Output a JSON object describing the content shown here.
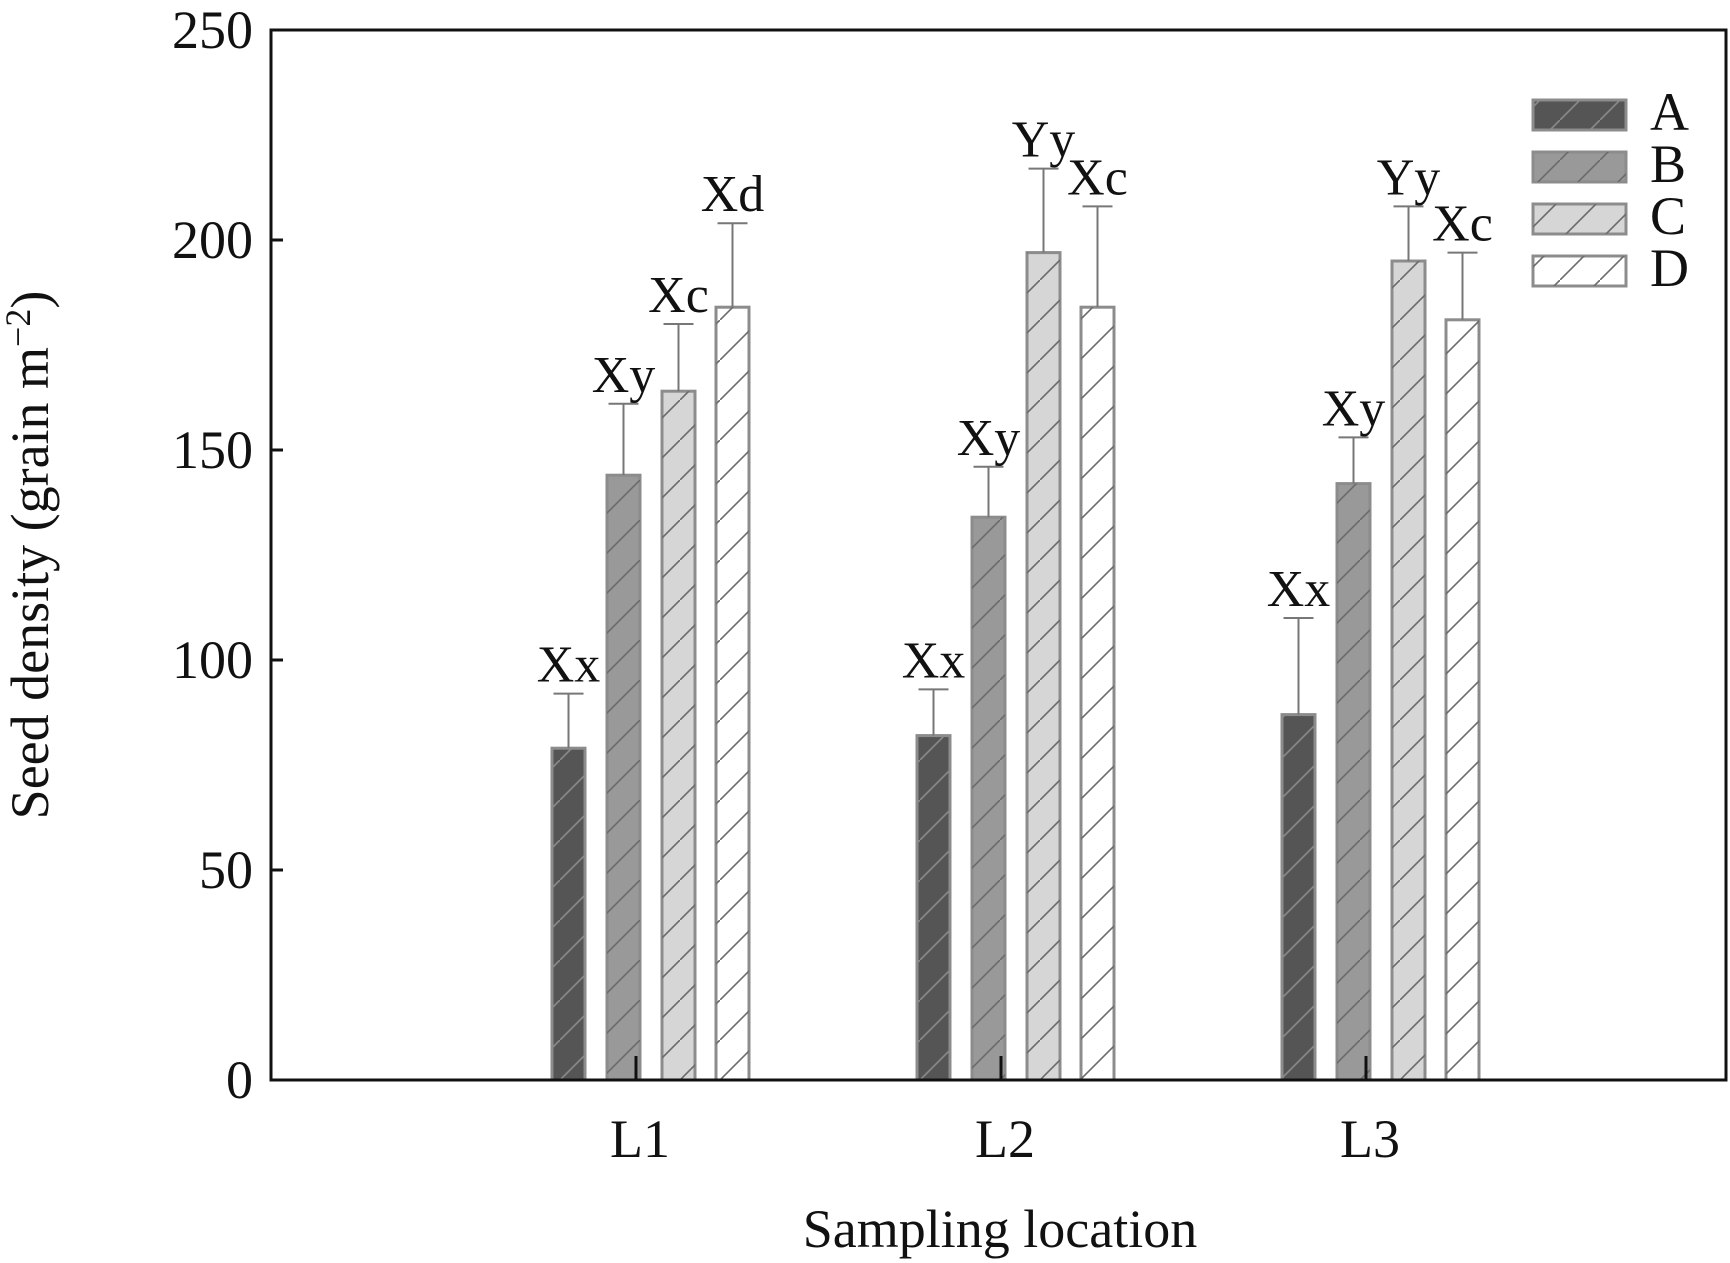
{
  "chart_data": {
    "type": "bar",
    "xlabel": "Sampling location",
    "ylabel": "Seed density (grain m",
    "ylabel_sup": "−2",
    "ylabel_close": ")",
    "ylim": [
      0,
      250
    ],
    "yticks": [
      0,
      50,
      100,
      150,
      200,
      250
    ],
    "categories": [
      "L1",
      "L2",
      "L3"
    ],
    "legend_position": "top-right",
    "series": [
      {
        "name": "A",
        "color": "#555555",
        "values": [
          79,
          82,
          87
        ],
        "errors": [
          13,
          11,
          23
        ],
        "labels": [
          "Xx",
          "Xx",
          "Xx"
        ]
      },
      {
        "name": "B",
        "color": "#999999",
        "values": [
          144,
          134,
          142
        ],
        "errors": [
          17,
          12,
          11
        ],
        "labels": [
          "Xy",
          "Xy",
          "Xy"
        ]
      },
      {
        "name": "C",
        "color": "#d6d6d6",
        "values": [
          164,
          197,
          195
        ],
        "errors": [
          16,
          20,
          13
        ],
        "labels": [
          "Xc",
          "Yy",
          "Yy"
        ]
      },
      {
        "name": "D",
        "color": "#ffffff",
        "values": [
          184,
          184,
          181
        ],
        "errors": [
          20,
          24,
          16
        ],
        "labels": [
          "Xd",
          "Xc",
          "Xc"
        ]
      }
    ]
  }
}
